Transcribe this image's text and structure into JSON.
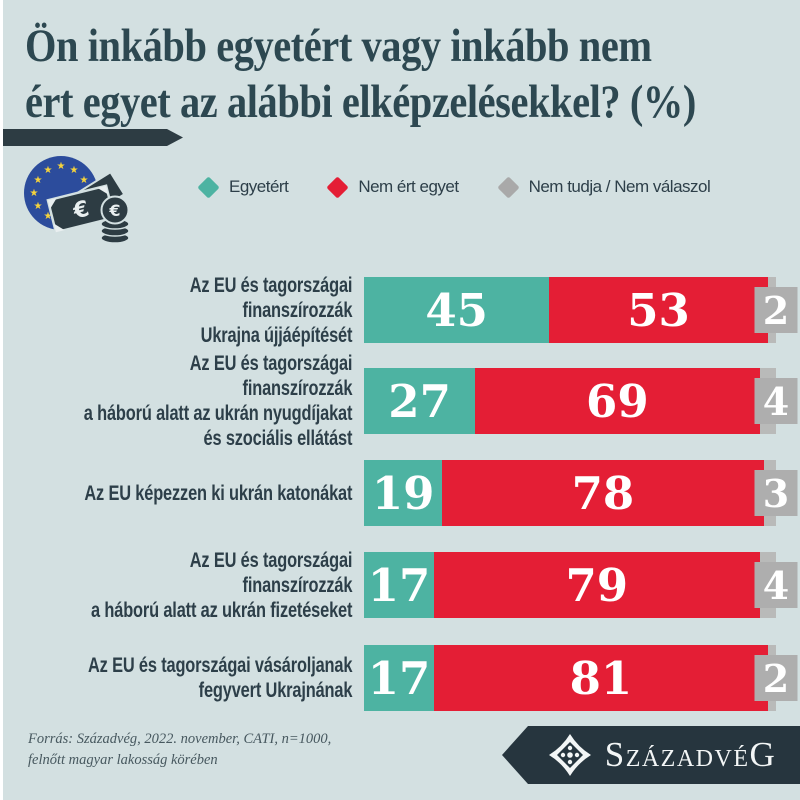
{
  "title": {
    "text": "Ön inkább egyetért vagy inkább nem\nért egyet az alábbi elképzelésekkel? (%)"
  },
  "legend": {
    "items": [
      {
        "label": "Egyetért",
        "color": "#4db3a2"
      },
      {
        "label": "Nem ért egyet",
        "color": "#e41e35"
      },
      {
        "label": "Nem tudja / Nem válaszol",
        "color": "#a9a9a9"
      }
    ]
  },
  "rows": [
    {
      "label": "Az EU és tagországai finanszírozzák\nUkrajna újjáépítését",
      "agree": 45,
      "disagree": 53,
      "dk": 2
    },
    {
      "label": "Az EU és tagországai finanszírozzák\na háború alatt az ukrán nyugdíjakat\nés szociális ellátást",
      "agree": 27,
      "disagree": 69,
      "dk": 4
    },
    {
      "label": "Az EU képezzen ki ukrán katonákat",
      "agree": 19,
      "disagree": 78,
      "dk": 3
    },
    {
      "label": "Az EU és tagországai finanszírozzák\na háború alatt az ukrán fizetéseket",
      "agree": 17,
      "disagree": 79,
      "dk": 4
    },
    {
      "label": "Az EU és tagországai vásároljanak\nfegyvert Ukrajnának",
      "agree": 17,
      "disagree": 81,
      "dk": 2
    }
  ],
  "chart_data": {
    "type": "bar",
    "orientation": "horizontal",
    "stacked": true,
    "title": "Ön inkább egyetért vagy inkább nem ért egyet az alábbi elképzelésekkel? (%)",
    "categories": [
      "Az EU és tagországai finanszírozzák Ukrajna újjáépítését",
      "Az EU és tagországai finanszírozzák a háború alatt az ukrán nyugdíjakat és szociális ellátást",
      "Az EU képezzen ki ukrán katonákat",
      "Az EU és tagországai finanszírozzák a háború alatt az ukrán fizetéseket",
      "Az EU és tagországai vásároljanak fegyvert Ukrajnának"
    ],
    "series": [
      {
        "name": "Egyetért",
        "values": [
          45,
          27,
          19,
          17,
          17
        ],
        "color": "#4db3a2"
      },
      {
        "name": "Nem ért egyet",
        "values": [
          53,
          69,
          78,
          79,
          81
        ],
        "color": "#e41e35"
      },
      {
        "name": "Nem tudja / Nem válaszol",
        "values": [
          2,
          4,
          3,
          4,
          2
        ],
        "color": "#aeaeae"
      }
    ],
    "xlim": [
      0,
      100
    ],
    "value_labels": true,
    "legend_position": "top",
    "grid": false
  },
  "footer": {
    "source": "Forrás: Századvég, 2022. november, CATI, n=1000,\nfelnőtt magyar lakosság körében"
  },
  "logo": {
    "part1": "S",
    "part2": "ZÁZADVÉ",
    "part3": "G"
  },
  "colors": {
    "background": "#d3e0e1",
    "title": "#2d4851",
    "accent_dark": "#2d3c43",
    "agree": "#4db3a2",
    "disagree": "#e41e35",
    "unknown": "#aeaeae"
  }
}
